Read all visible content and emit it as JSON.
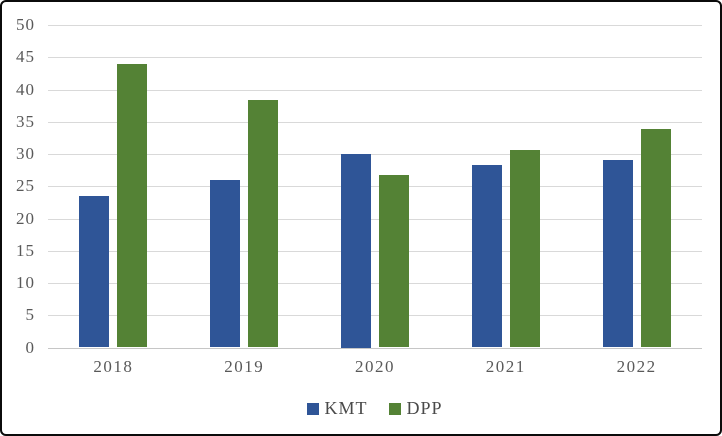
{
  "chart_data": {
    "type": "bar",
    "title": "",
    "xlabel": "",
    "ylabel": "",
    "categories": [
      "2018",
      "2019",
      "2020",
      "2021",
      "2022"
    ],
    "series": [
      {
        "name": "KMT",
        "color": "#2F5597",
        "values": [
          23.5,
          26,
          30,
          28.3,
          29
        ]
      },
      {
        "name": "DPP",
        "color": "#548235",
        "values": [
          44,
          38.4,
          26.7,
          30.6,
          33.8
        ]
      }
    ],
    "ylim": [
      0,
      50
    ],
    "ytick_step": 5,
    "ytick_labels": [
      "0",
      "5",
      "10",
      "15",
      "20",
      "25",
      "30",
      "35",
      "40",
      "45",
      "50"
    ],
    "grid": "horizontal",
    "gridline_color": "#D9D9D9",
    "axis_line_color": "#C6C6C6",
    "tick_text_color": "#595959",
    "legend_position": "bottom"
  },
  "legend": {
    "items": [
      {
        "label": "KMT",
        "color": "#2F5597"
      },
      {
        "label": "DPP",
        "color": "#548235"
      }
    ]
  }
}
